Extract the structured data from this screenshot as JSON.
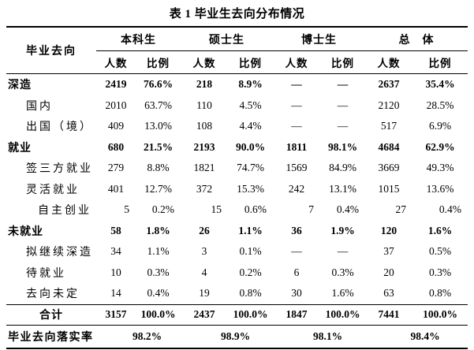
{
  "title": "表 1 毕业生去向分布情况",
  "table": {
    "row_header": "毕业去向",
    "groups": [
      {
        "label": "本科生"
      },
      {
        "label": "硕士生"
      },
      {
        "label": "博士生"
      },
      {
        "label": "总　体"
      }
    ],
    "subheaders": {
      "count": "人数",
      "ratio": "比例"
    },
    "rows": [
      {
        "label": "深造",
        "indent": 0,
        "bold": true,
        "values": [
          "2419",
          "76.6%",
          "218",
          "8.9%",
          "—",
          "—",
          "2637",
          "35.4%"
        ]
      },
      {
        "label": "国内",
        "indent": 1,
        "bold": false,
        "values": [
          "2010",
          "63.7%",
          "110",
          "4.5%",
          "—",
          "—",
          "2120",
          "28.5%"
        ]
      },
      {
        "label": "出国（境）",
        "indent": 1,
        "bold": false,
        "values": [
          "409",
          "13.0%",
          "108",
          "4.4%",
          "—",
          "—",
          "517",
          "6.9%"
        ]
      },
      {
        "label": "就业",
        "indent": 0,
        "bold": true,
        "values": [
          "680",
          "21.5%",
          "2193",
          "90.0%",
          "1811",
          "98.1%",
          "4684",
          "62.9%"
        ]
      },
      {
        "label": "签三方就业",
        "indent": 1,
        "bold": false,
        "values": [
          "279",
          "8.8%",
          "1821",
          "74.7%",
          "1569",
          "84.9%",
          "3669",
          "49.3%"
        ]
      },
      {
        "label": "灵活就业",
        "indent": 1,
        "bold": false,
        "values": [
          "401",
          "12.7%",
          "372",
          "15.3%",
          "242",
          "13.1%",
          "1015",
          "13.6%"
        ]
      },
      {
        "label": "自主创业",
        "indent": 2,
        "bold": false,
        "align": "right",
        "values": [
          "5",
          "0.2%",
          "15",
          "0.6%",
          "7",
          "0.4%",
          "27",
          "0.4%"
        ]
      },
      {
        "label": "未就业",
        "indent": 0,
        "bold": true,
        "values": [
          "58",
          "1.8%",
          "26",
          "1.1%",
          "36",
          "1.9%",
          "120",
          "1.6%"
        ]
      },
      {
        "label": "拟继续深造",
        "indent": 1,
        "bold": false,
        "values": [
          "34",
          "1.1%",
          "3",
          "0.1%",
          "—",
          "—",
          "37",
          "0.5%"
        ]
      },
      {
        "label": "待就业",
        "indent": 1,
        "bold": false,
        "values": [
          "10",
          "0.3%",
          "4",
          "0.2%",
          "6",
          "0.3%",
          "20",
          "0.3%"
        ]
      },
      {
        "label": "去向未定",
        "indent": 1,
        "bold": false,
        "values": [
          "14",
          "0.4%",
          "19",
          "0.8%",
          "30",
          "1.6%",
          "63",
          "0.8%"
        ]
      }
    ],
    "total_row": {
      "label": "合计",
      "values": [
        "3157",
        "100.0%",
        "2437",
        "100.0%",
        "1847",
        "100.0%",
        "7441",
        "100.0%"
      ]
    },
    "rate_row": {
      "label": "毕业去向落实率",
      "values": [
        "98.2%",
        "98.9%",
        "98.1%",
        "98.4%"
      ]
    }
  }
}
